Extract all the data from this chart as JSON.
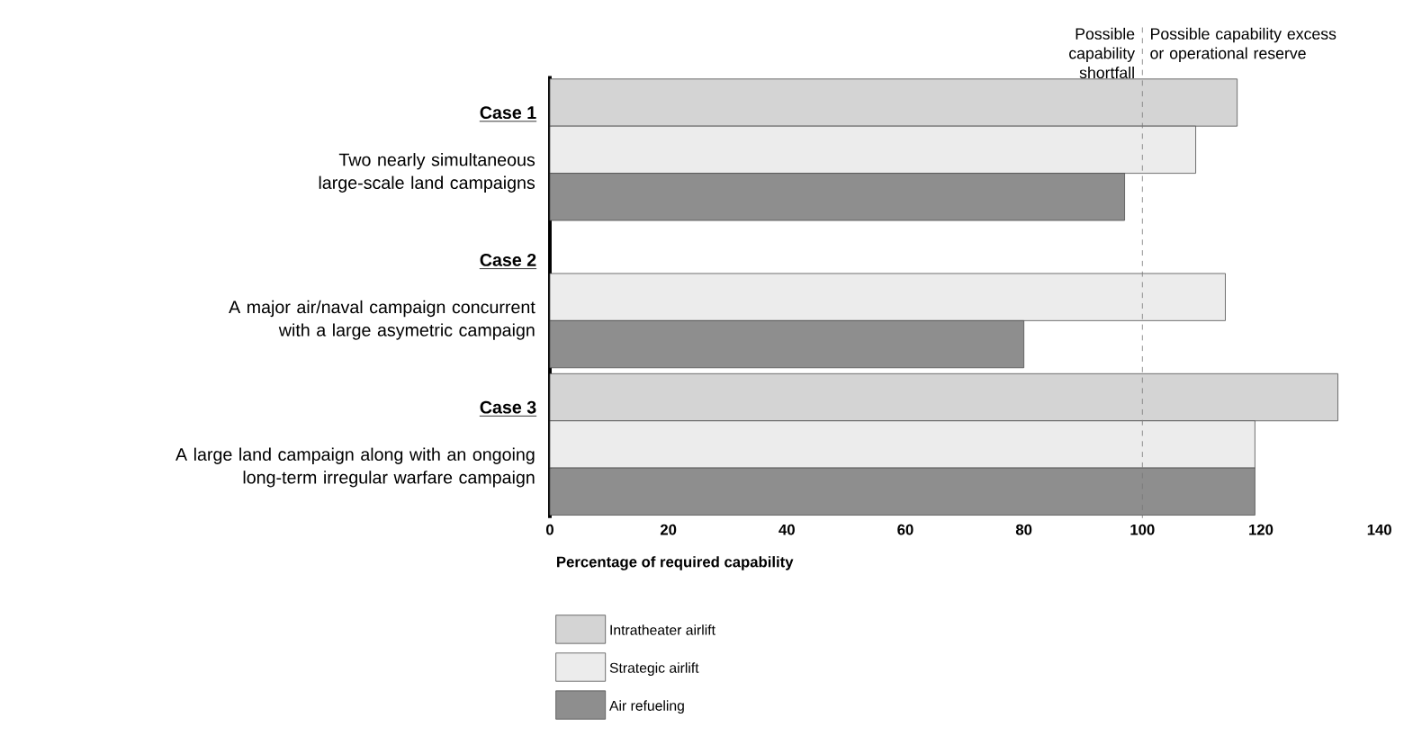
{
  "chart_data": {
    "type": "bar",
    "orientation": "horizontal",
    "categories": [
      "Case 1",
      "Case 2",
      "Case 3"
    ],
    "series": [
      {
        "name": "Intratheater airlift",
        "color": "#d4d4d4",
        "values": [
          116,
          null,
          133
        ]
      },
      {
        "name": "Strategic airlift",
        "color": "#ececec",
        "values": [
          109,
          114,
          119
        ]
      },
      {
        "name": "Air refueling",
        "color": "#8e8e8e",
        "values": [
          97,
          80,
          119
        ]
      }
    ],
    "xlabel": "Percentage of required capability",
    "xlim": [
      0,
      140
    ],
    "xticks": [
      0,
      20,
      40,
      60,
      80,
      100,
      120,
      140
    ],
    "ref_lines": [
      {
        "axis": "x",
        "value": 100,
        "line_style": "dashed",
        "color": "#777777"
      }
    ],
    "annotations": [
      "Two nearly simultaneous large-scale land campaigns",
      "A major air/naval campaign concurrent with a large asymetric campaign",
      "A large land campaign along with an ongoing long-term irregular warfare campaign",
      "Possible capability shortfall",
      "Possible capability excess or operational reserve"
    ],
    "legend": "bottom",
    "grid": false
  }
}
